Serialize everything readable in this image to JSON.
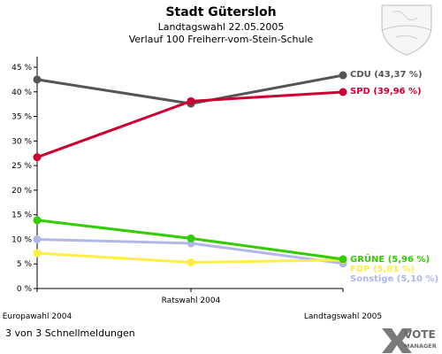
{
  "chart_data": {
    "type": "line",
    "title": "Stadt Gütersloh",
    "subtitle1": "Landtagswahl 22.05.2005",
    "subtitle2": "Verlauf 100 Freiherr-vom-Stein-Schule",
    "categories": [
      "Europawahl 2004",
      "Ratswahl 2004",
      "Landtagswahl 2005"
    ],
    "ylim": [
      0,
      45
    ],
    "yticks": [
      "0 %",
      "5 %",
      "10 %",
      "15 %",
      "20 %",
      "25 %",
      "30 %",
      "35 %",
      "40 %",
      "45 %"
    ],
    "ytick_values": [
      0,
      5,
      10,
      15,
      20,
      25,
      30,
      35,
      40,
      45
    ],
    "grid": false,
    "series": [
      {
        "name": "CDU",
        "values": [
          42.5,
          37.6,
          43.37
        ],
        "color": "#555555",
        "end_label": "CDU (43,37 %)"
      },
      {
        "name": "SPD",
        "values": [
          26.7,
          38.1,
          39.96
        ],
        "color": "#cc0033",
        "end_label": "SPD (39,96 %)"
      },
      {
        "name": "GRÜNE",
        "values": [
          13.9,
          10.2,
          5.96
        ],
        "color": "#33cc00",
        "end_label": "GRÜNE (5,96 %)"
      },
      {
        "name": "FDP",
        "values": [
          7.2,
          5.3,
          5.81
        ],
        "color": "#ffee44",
        "end_label": "FDP (5,81 %)"
      },
      {
        "name": "Sonstige",
        "values": [
          10.0,
          9.2,
          5.1
        ],
        "color": "#b0b8e8",
        "end_label": "Sonstige (5,10 %)"
      }
    ]
  },
  "footer": {
    "text": "3 von 3 Schnellmeldungen"
  },
  "logo": {
    "line1": "VOTE",
    "line2": "MANAGER"
  }
}
